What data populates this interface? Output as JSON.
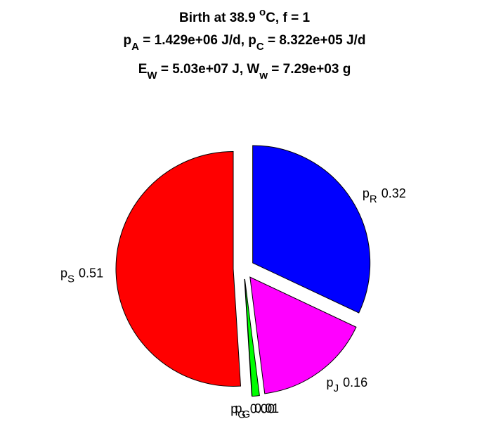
{
  "chart_data": {
    "type": "pie",
    "title_lines": [
      [
        {
          "text": "Birth at 38.9 "
        },
        {
          "text": "o",
          "shift": "super"
        },
        {
          "text": "C, f = 1"
        }
      ],
      [
        {
          "text": "p"
        },
        {
          "text": "A",
          "shift": "sub"
        },
        {
          "text": " = 1.429e+06 J/d, p"
        },
        {
          "text": "C",
          "shift": "sub"
        },
        {
          "text": " = 8.322e+05 J/d"
        }
      ],
      [
        {
          "text": "E"
        },
        {
          "text": "W",
          "shift": "sub"
        },
        {
          "text": " = 5.03e+07 J, W"
        },
        {
          "text": "w",
          "shift": "sub"
        },
        {
          "text": " = 7.29e+03 g"
        }
      ]
    ],
    "label_symbol": "p",
    "categories": [
      "R",
      "J",
      "G",
      "G",
      "S"
    ],
    "values": [
      0.32,
      0.16,
      0.01,
      0.0,
      0.51
    ],
    "value_labels": [
      "0.32",
      "0.16",
      "0.01",
      "0.00",
      "0.51"
    ],
    "colors": [
      "#0000ff",
      "#ff00ff",
      "#00ff00",
      "#ffff00",
      "#ff0000"
    ],
    "exploded": true
  }
}
